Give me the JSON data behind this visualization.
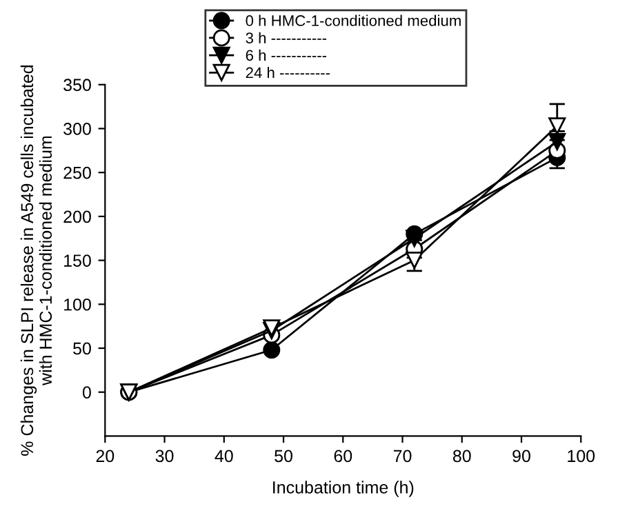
{
  "chart_data": {
    "type": "line",
    "xlabel": "Incubation time (h)",
    "ylabel": "% Changes in SLPI release in A549 cells incubated\nwith HMC-1-conditioned medium",
    "x": [
      24,
      48,
      72,
      96
    ],
    "series": [
      {
        "name": "0 h HMC-1-conditioned medium",
        "color": "#000000",
        "marker": "circle",
        "values": [
          0,
          48,
          180,
          267
        ],
        "errors": [
          null,
          null,
          null,
          12
        ]
      },
      {
        "name": "3 h -----------",
        "color": "#000000",
        "marker": "circle",
        "values": [
          0,
          65,
          163,
          275
        ],
        "errors": [
          null,
          null,
          10,
          12
        ]
      },
      {
        "name": "6 h -----------",
        "color": "#000000",
        "marker": "triangle",
        "values": [
          0,
          70,
          175,
          285
        ],
        "errors": [
          null,
          null,
          null,
          12
        ]
      },
      {
        "name": "24 h ----------",
        "color": "#000000",
        "marker": "triangle",
        "values": [
          0,
          73,
          150,
          303
        ],
        "errors": [
          null,
          6,
          12,
          25
        ]
      }
    ],
    "xlim": [
      20,
      100
    ],
    "xticks": [
      20,
      30,
      40,
      50,
      60,
      70,
      80,
      90,
      100
    ],
    "ylim": [
      -50,
      350
    ],
    "yticks": [
      0,
      50,
      100,
      150,
      200,
      250,
      300,
      350
    ],
    "grid": false,
    "legend": "top left"
  }
}
